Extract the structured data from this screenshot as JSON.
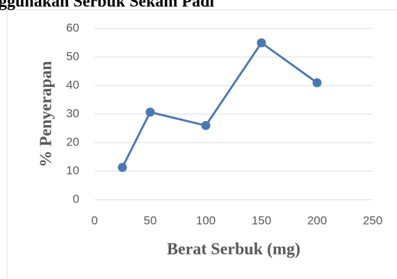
{
  "chart_data": {
    "type": "line",
    "title": "ggunakan Serbuk Sekam Padi",
    "x_label": "Berat Serbuk (mg)",
    "y_label": "% Penyerapan",
    "series": [
      {
        "name": "% Penyerapan",
        "color": "#4a78b5",
        "x": [
          25,
          50,
          100,
          150,
          200
        ],
        "values": [
          11.3,
          30.7,
          26,
          55,
          41
        ]
      }
    ],
    "xlim": [
      0,
      250
    ],
    "xticks": [
      0,
      50,
      100,
      150,
      200,
      250
    ],
    "ylim": [
      0,
      60
    ],
    "yticks": [
      0,
      10,
      20,
      30,
      40,
      50,
      60
    ],
    "grid": true
  }
}
